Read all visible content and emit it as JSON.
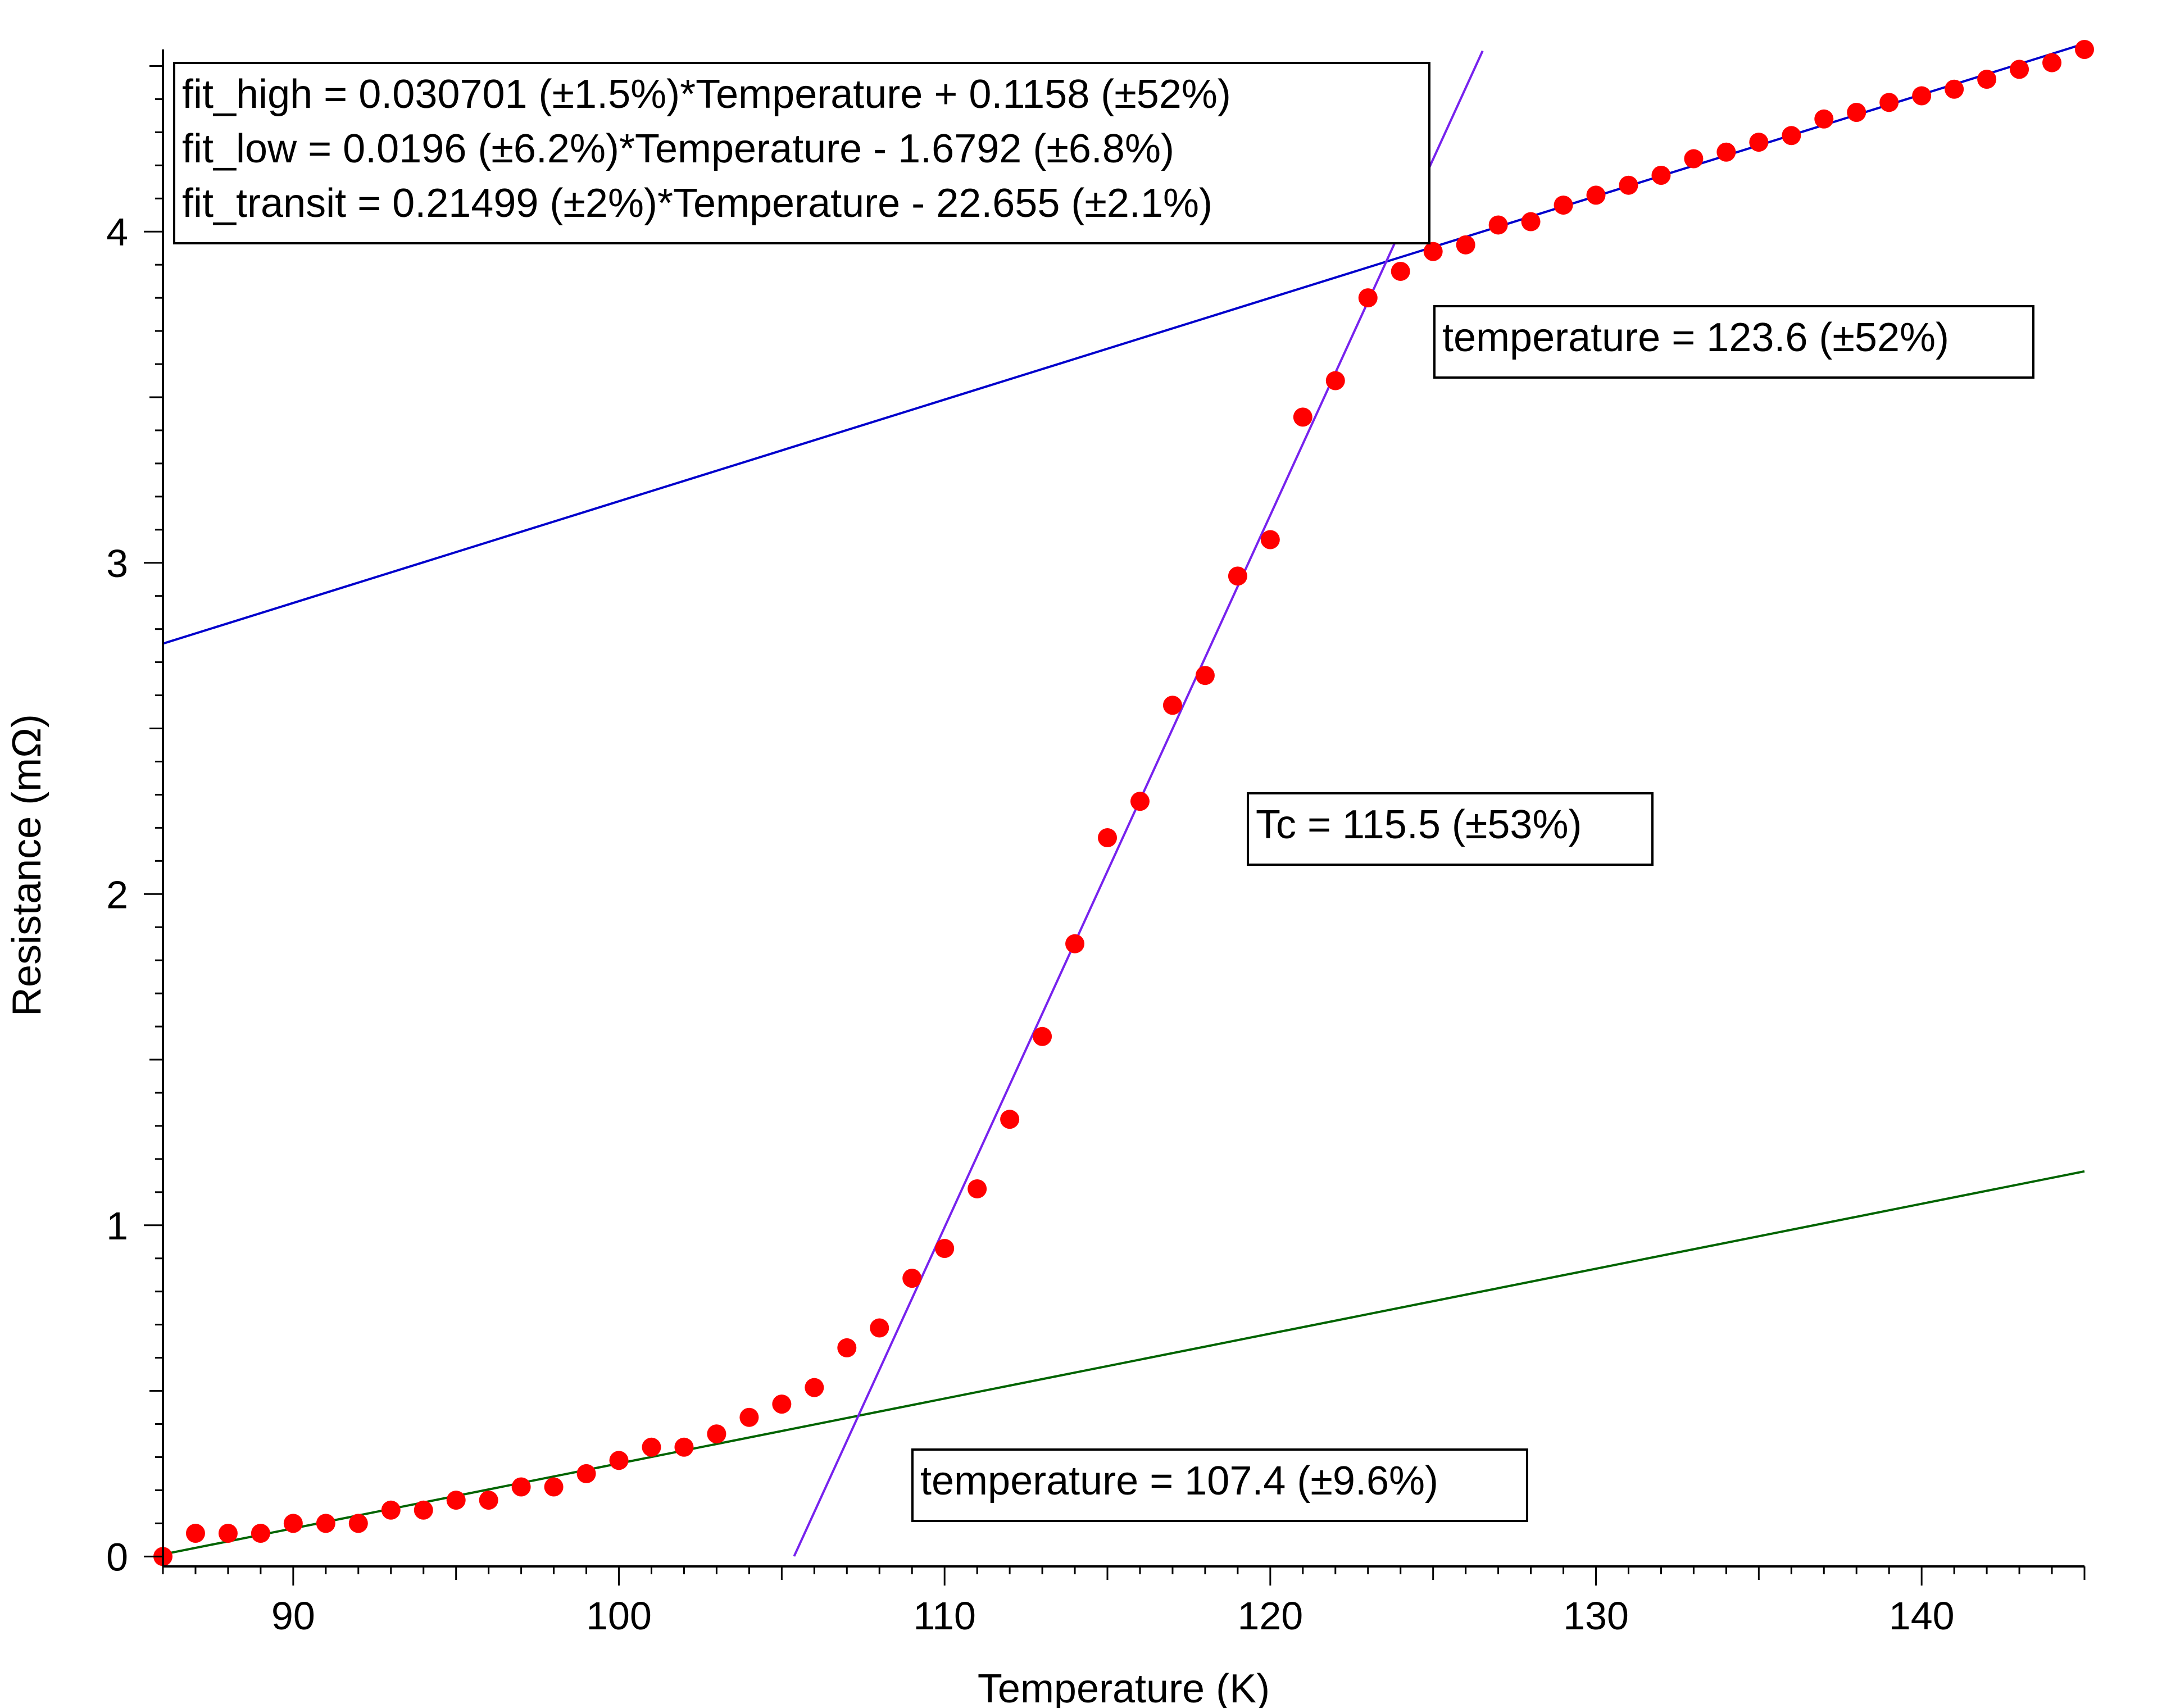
{
  "chart_data": {
    "type": "scatter",
    "title": "",
    "xlabel": "Temperature (K)",
    "ylabel": "Resistance (mΩ)",
    "xlim": [
      86,
      145
    ],
    "ylim": [
      -0.03,
      4.55
    ],
    "x_ticks": [
      90,
      100,
      110,
      120,
      130,
      140
    ],
    "x_tick_labels": [
      "90",
      "100",
      "110",
      "120",
      "130",
      "140"
    ],
    "y_ticks": [
      0,
      1,
      2,
      3,
      4
    ],
    "y_tick_labels": [
      "0",
      "1",
      "2",
      "3",
      "4"
    ],
    "grid": false,
    "legend": "none",
    "series": [
      {
        "kind": "points",
        "color": "#ff0000",
        "x": [
          86,
          87,
          88,
          89,
          90,
          91,
          92,
          93,
          94,
          95,
          96,
          97,
          98,
          99,
          100,
          101,
          102,
          103,
          104,
          105,
          106,
          107,
          108,
          109,
          110,
          111,
          112,
          113,
          114,
          115,
          116,
          117,
          118,
          119,
          120,
          121,
          122,
          123,
          124,
          125,
          126,
          127,
          128,
          129,
          130,
          131,
          132,
          133,
          134,
          135,
          136,
          137,
          138,
          139,
          140,
          141,
          142,
          143,
          144,
          145
        ],
        "y": [
          0,
          0.07,
          0.07,
          0.07,
          0.1,
          0.1,
          0.1,
          0.14,
          0.14,
          0.17,
          0.17,
          0.21,
          0.21,
          0.25,
          0.29,
          0.33,
          0.33,
          0.37,
          0.42,
          0.46,
          0.51,
          0.63,
          0.69,
          0.84,
          0.93,
          1.11,
          1.32,
          1.57,
          1.85,
          2.17,
          2.28,
          2.57,
          2.66,
          2.96,
          3.07,
          3.44,
          3.55,
          3.8,
          3.88,
          3.94,
          3.96,
          4.02,
          4.03,
          4.08,
          4.11,
          4.14,
          4.17,
          4.22,
          4.24,
          4.27,
          4.29,
          4.34,
          4.36,
          4.39,
          4.41,
          4.43,
          4.46,
          4.49,
          4.51,
          4.55
        ]
      },
      {
        "kind": "line",
        "color": "#0000cc",
        "slope": 0.030701,
        "intercept": 0.1158,
        "x_range": [
          86,
          145
        ]
      },
      {
        "kind": "line",
        "color": "#006400",
        "slope": 0.0196,
        "intercept": -1.6792,
        "x_range": [
          86,
          145
        ]
      },
      {
        "kind": "line",
        "color": "#7722ee",
        "slope": 0.21499,
        "intercept": -22.655,
        "x_range": [
          105.38,
          126.52
        ]
      }
    ],
    "annotations": [
      {
        "lines": [
          "fit_high = 0.030701 (±1.5%)*Temperature + 0.1158 (±52%)",
          "fit_low = 0.0196 (±6.2%)*Temperature - 1.6792 (±6.8%)",
          "fit_transit = 0.21499 (±2%)*Temperature - 22.655 (±2.1%)"
        ]
      },
      {
        "lines": [
          "temperature = 123.6 (±52%)"
        ]
      },
      {
        "lines": [
          "Tc = 115.5 (±53%)"
        ]
      },
      {
        "lines": [
          "temperature = 107.4 (±9.6%)"
        ]
      }
    ]
  }
}
